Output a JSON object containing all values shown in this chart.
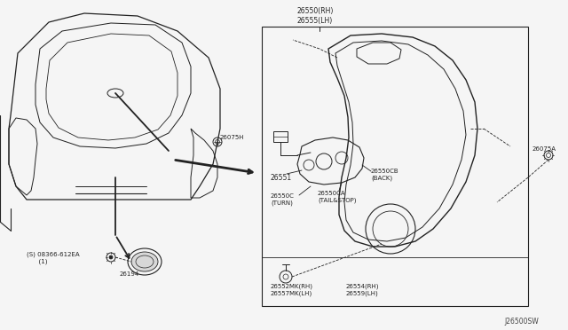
{
  "bg_color": "#f5f5f5",
  "line_color": "#222222",
  "text_color": "#222222",
  "diagram_code": "J26500SW",
  "labels": {
    "26550RH_26555LH": "26550(RH)\n26555(LH)",
    "26551": "26551",
    "26550CB_BACK": "26550CB\n(BACK)",
    "26550C_TURN": "26550C\n(TURN)",
    "26550CA_TAILSTOP": "26550CA\n(TAIL&STOP)",
    "26075H": "26075H",
    "26075A": "26075A",
    "08366_612EA": "(S) 08366-612EA\n      (1)",
    "26194": "26194",
    "26552MK_26557MK": "26552MK(RH)\n26557MK(LH)",
    "26554RH_26559LH": "26554(RH)\n26559(LH)"
  }
}
